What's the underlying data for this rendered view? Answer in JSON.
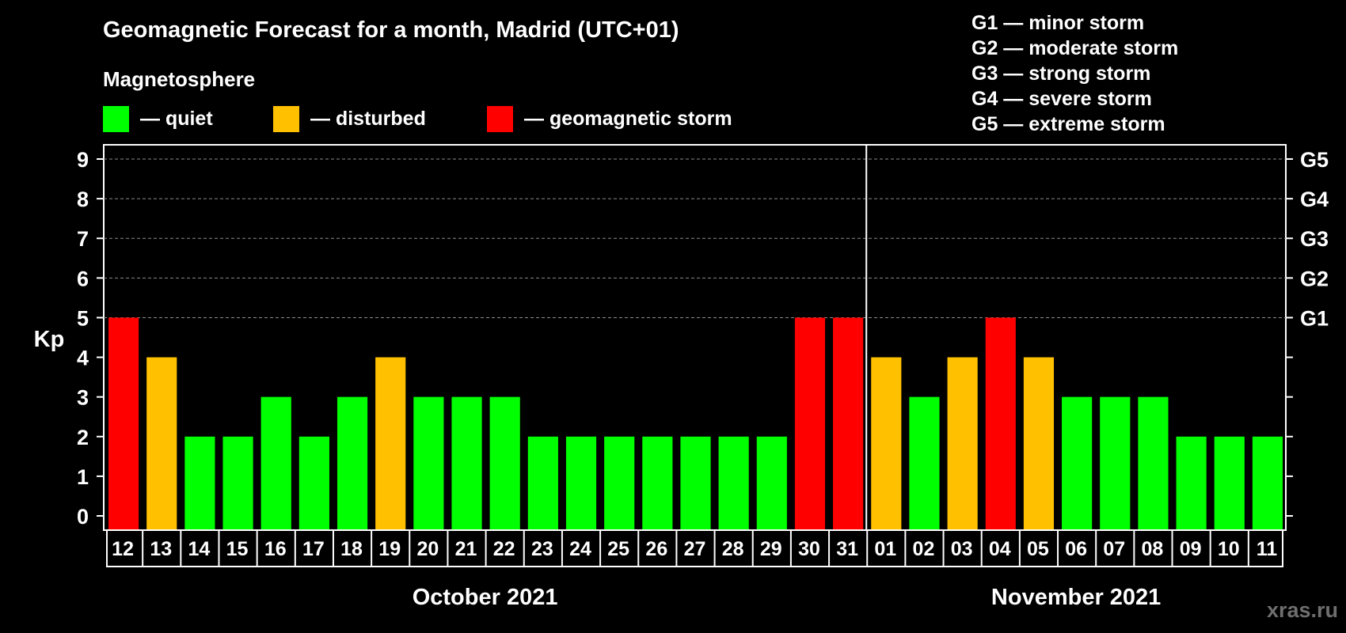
{
  "chart_data": {
    "type": "bar",
    "title": "Geomagnetic Forecast for a month, Madrid (UTC+01)",
    "subtitle": "Magnetosphere",
    "ylabel": "Kp",
    "ylim": [
      0,
      9
    ],
    "yticks": [
      "0",
      "1",
      "2",
      "3",
      "4",
      "5",
      "6",
      "7",
      "8",
      "9"
    ],
    "right_axis_labels": [
      {
        "kp": 5,
        "label": "G1"
      },
      {
        "kp": 6,
        "label": "G2"
      },
      {
        "kp": 7,
        "label": "G3"
      },
      {
        "kp": 8,
        "label": "G4"
      },
      {
        "kp": 9,
        "label": "G5"
      }
    ],
    "grid": true,
    "legend": [
      {
        "color": "#00ff00",
        "label": "— quiet"
      },
      {
        "color": "#ffc000",
        "label": "— disturbed"
      },
      {
        "color": "#ff0000",
        "label": "— geomagnetic storm"
      }
    ],
    "storm_scale": [
      "G1 — minor storm",
      "G2 — moderate storm",
      "G3 — strong storm",
      "G4 — severe storm",
      "G5 — extreme storm"
    ],
    "categories": [
      "12",
      "13",
      "14",
      "15",
      "16",
      "17",
      "18",
      "19",
      "20",
      "21",
      "22",
      "23",
      "24",
      "25",
      "26",
      "27",
      "28",
      "29",
      "30",
      "31",
      "01",
      "02",
      "03",
      "04",
      "05",
      "06",
      "07",
      "08",
      "09",
      "10",
      "11"
    ],
    "values": [
      5,
      4,
      2,
      2,
      3,
      2,
      3,
      4,
      3,
      3,
      3,
      2,
      2,
      2,
      2,
      2,
      2,
      2,
      5,
      5,
      4,
      3,
      4,
      5,
      4,
      3,
      3,
      3,
      2,
      2,
      2
    ],
    "months": [
      {
        "label": "October 2021",
        "count": 20
      },
      {
        "label": "November 2021",
        "count": 11
      }
    ],
    "colors": {
      "quiet": "#00ff00",
      "disturbed": "#ffc000",
      "storm": "#ff0000"
    }
  },
  "watermark": "xras.ru"
}
